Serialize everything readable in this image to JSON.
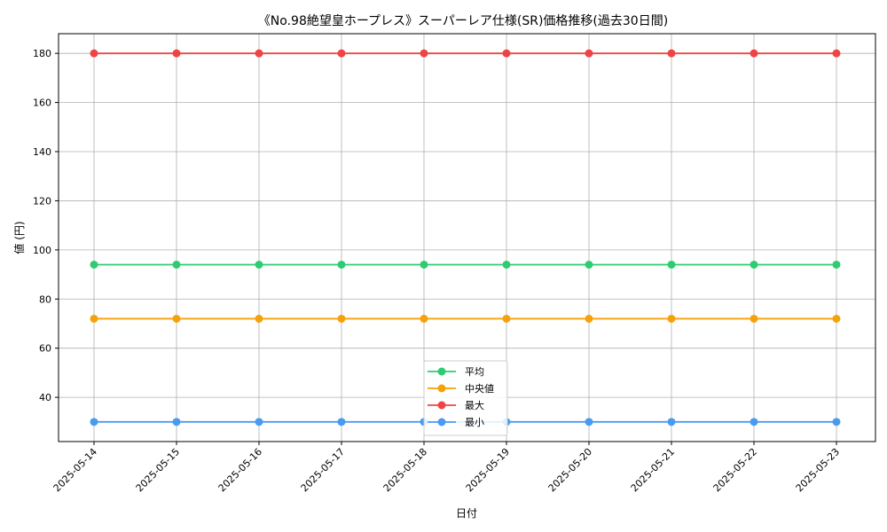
{
  "chart_data": {
    "type": "line",
    "title": "《No.98絶望皇ホープレス》スーパーレア仕様(SR)価格推移(過去30日間)",
    "xlabel": "日付",
    "ylabel": "値 (円)",
    "categories": [
      "2025-05-14",
      "2025-05-15",
      "2025-05-16",
      "2025-05-17",
      "2025-05-18",
      "2025-05-19",
      "2025-05-20",
      "2025-05-21",
      "2025-05-22",
      "2025-05-23"
    ],
    "ylim": [
      22,
      188
    ],
    "yticks": [
      40,
      60,
      80,
      100,
      120,
      140,
      160,
      180
    ],
    "grid": true,
    "legend_position": "bottom-center",
    "series": [
      {
        "name": "平均",
        "color": "#2ecc71",
        "values": [
          94,
          94,
          94,
          94,
          94,
          94,
          94,
          94,
          94,
          94
        ]
      },
      {
        "name": "中央値",
        "color": "#f5a20a",
        "values": [
          72,
          72,
          72,
          72,
          72,
          72,
          72,
          72,
          72,
          72
        ]
      },
      {
        "name": "最大",
        "color": "#ef4444",
        "values": [
          180,
          180,
          180,
          180,
          180,
          180,
          180,
          180,
          180,
          180
        ]
      },
      {
        "name": "最小",
        "color": "#4a9bf0",
        "values": [
          30,
          30,
          30,
          30,
          30,
          30,
          30,
          30,
          30,
          30
        ]
      }
    ]
  }
}
